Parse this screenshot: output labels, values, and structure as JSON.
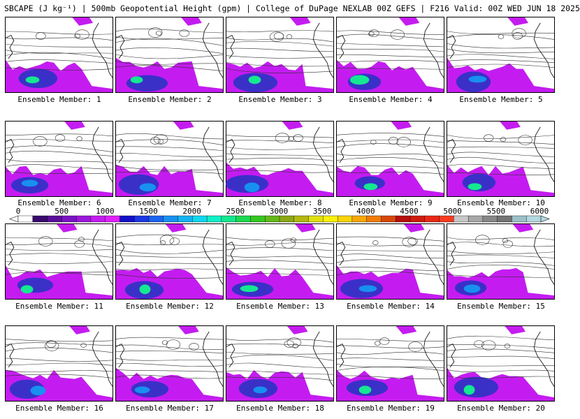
{
  "title": "SBCAPE (J kg⁻¹) | 500mb Geopotential Height (gpm) | College of DuPage NEXLAB 00Z GEFS | F216 Valid: 00Z WED JUN 18 2025",
  "panels": [
    {
      "label": "Ensemble Member: 1"
    },
    {
      "label": "Ensemble Member: 2"
    },
    {
      "label": "Ensemble Member: 3"
    },
    {
      "label": "Ensemble Member: 4"
    },
    {
      "label": "Ensemble Member: 5"
    },
    {
      "label": "Ensemble Member: 6"
    },
    {
      "label": "Ensemble Member: 7"
    },
    {
      "label": "Ensemble Member: 8"
    },
    {
      "label": "Ensemble Member: 9"
    },
    {
      "label": "Ensemble Member: 10"
    },
    {
      "label": "Ensemble Member: 11"
    },
    {
      "label": "Ensemble Member: 12"
    },
    {
      "label": "Ensemble Member: 13"
    },
    {
      "label": "Ensemble Member: 14"
    },
    {
      "label": "Ensemble Member: 15"
    },
    {
      "label": "Ensemble Member: 16"
    },
    {
      "label": "Ensemble Member: 17"
    },
    {
      "label": "Ensemble Member: 18"
    },
    {
      "label": "Ensemble Member: 19"
    },
    {
      "label": "Ensemble Member: 20"
    }
  ],
  "colorbar": {
    "ticks": [
      "0",
      "500",
      "1000",
      "1500",
      "2000",
      "2500",
      "3000",
      "3500",
      "4000",
      "4500",
      "5000",
      "5500",
      "6000"
    ],
    "colors": [
      "#ffffff",
      "#3a0a6e",
      "#5a0f9a",
      "#7a14c4",
      "#9c18dc",
      "#c41cf0",
      "#e020f8",
      "#1410c8",
      "#1c38e4",
      "#1c64f0",
      "#1890f0",
      "#14b4f0",
      "#10d8f0",
      "#10f0c8",
      "#14e890",
      "#1cd850",
      "#34c820",
      "#64b818",
      "#8ca814",
      "#b4b810",
      "#e0e010",
      "#f8f00c",
      "#f8d408",
      "#f8a808",
      "#f07c08",
      "#d84808",
      "#b8100c",
      "#d01c10",
      "#e82818",
      "#f83c20",
      "#c8c8c8",
      "#a8a8a8",
      "#888888",
      "#747474",
      "#9cc0c8",
      "#b4d8e0"
    ]
  },
  "map_colors": {
    "cape_low": "#c41cf0",
    "cape_mid": "#3a30c8",
    "cape_high": "#1890f0",
    "cape_peak": "#14e890",
    "contour": "#303030",
    "coast": "#000000"
  }
}
